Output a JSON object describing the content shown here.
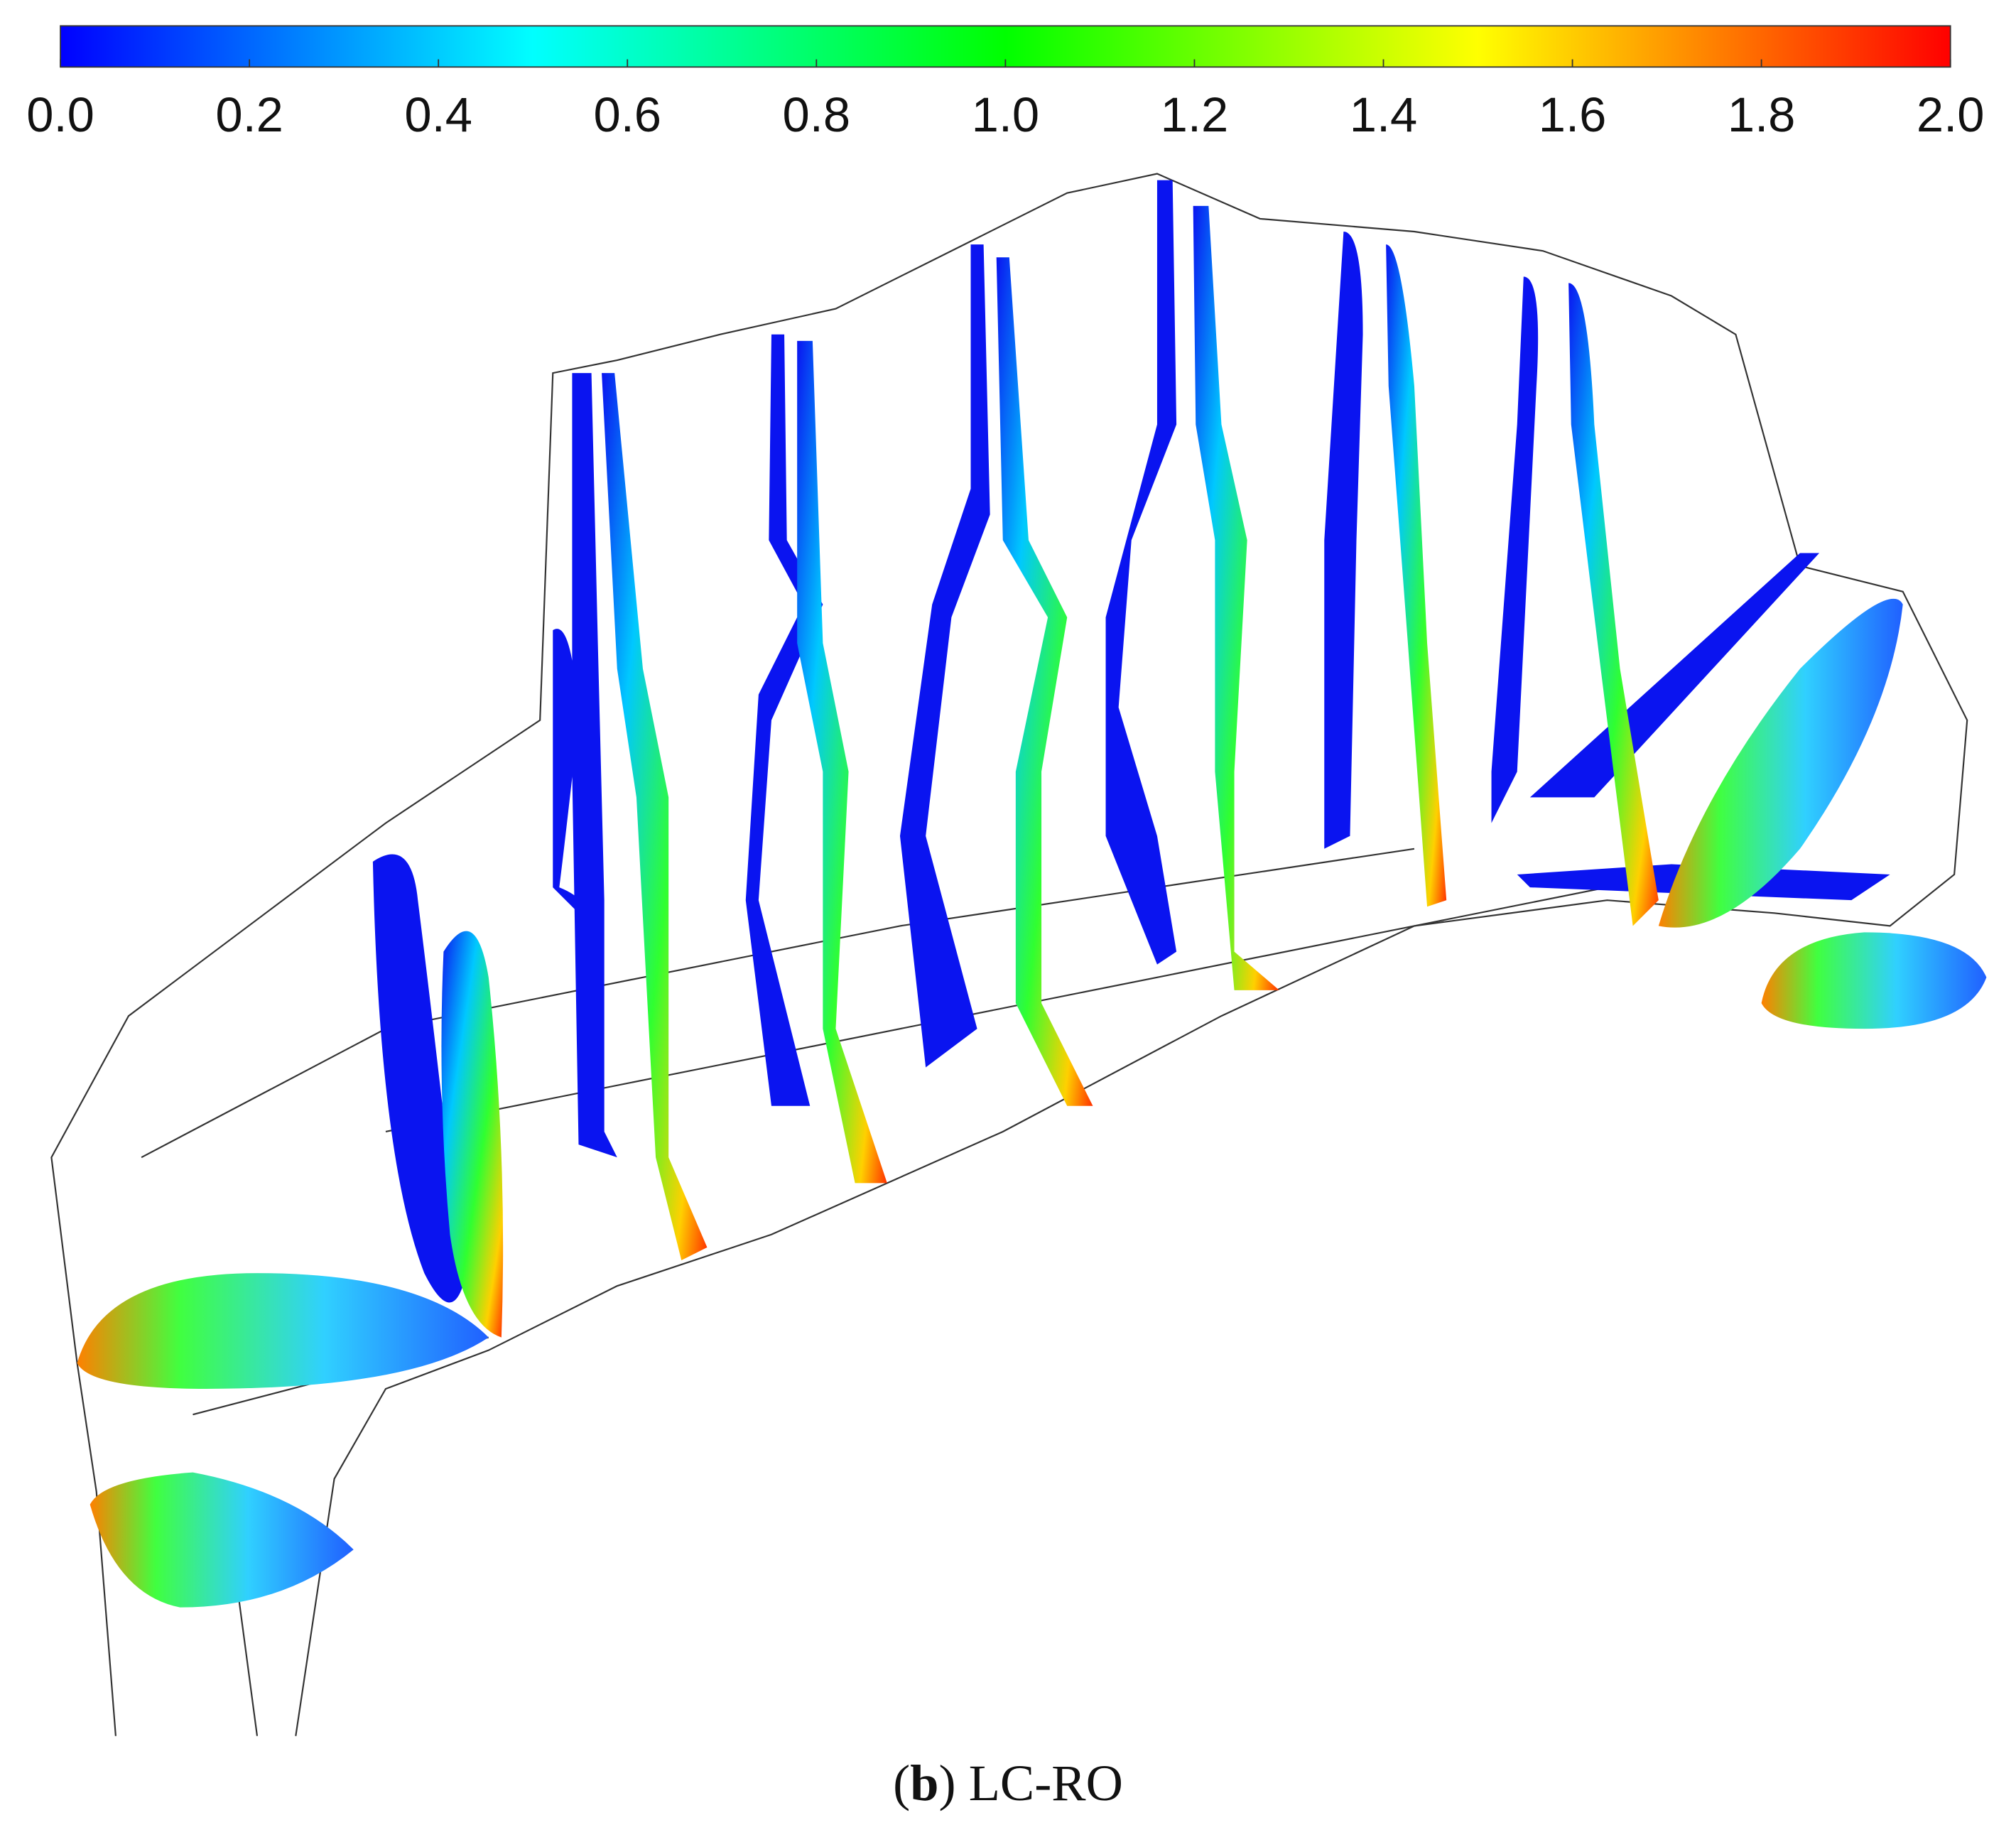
{
  "colorbar": {
    "lim": [
      0,
      2
    ],
    "ticks": [
      {
        "value": 0,
        "label": "0.0"
      },
      {
        "value": 0.2,
        "label": "0.2"
      },
      {
        "value": 0.4,
        "label": "0.4"
      },
      {
        "value": 0.6,
        "label": "0.6"
      },
      {
        "value": 0.8,
        "label": "0.8"
      },
      {
        "value": 1,
        "label": "1.0"
      },
      {
        "value": 1.2,
        "label": "1.2"
      },
      {
        "value": 1.4,
        "label": "1.4"
      },
      {
        "value": 1.6,
        "label": "1.6"
      },
      {
        "value": 1.8,
        "label": "1.8"
      },
      {
        "value": 2,
        "label": "2.0"
      }
    ],
    "colors": [
      "#0000ff",
      "#0080ff",
      "#00ffff",
      "#00ff80",
      "#00ff00",
      "#80ff00",
      "#ffff00",
      "#ff8000",
      "#ff0000"
    ]
  },
  "caption": {
    "open": "(",
    "label": "b",
    "rest": ") LC-RO"
  }
}
